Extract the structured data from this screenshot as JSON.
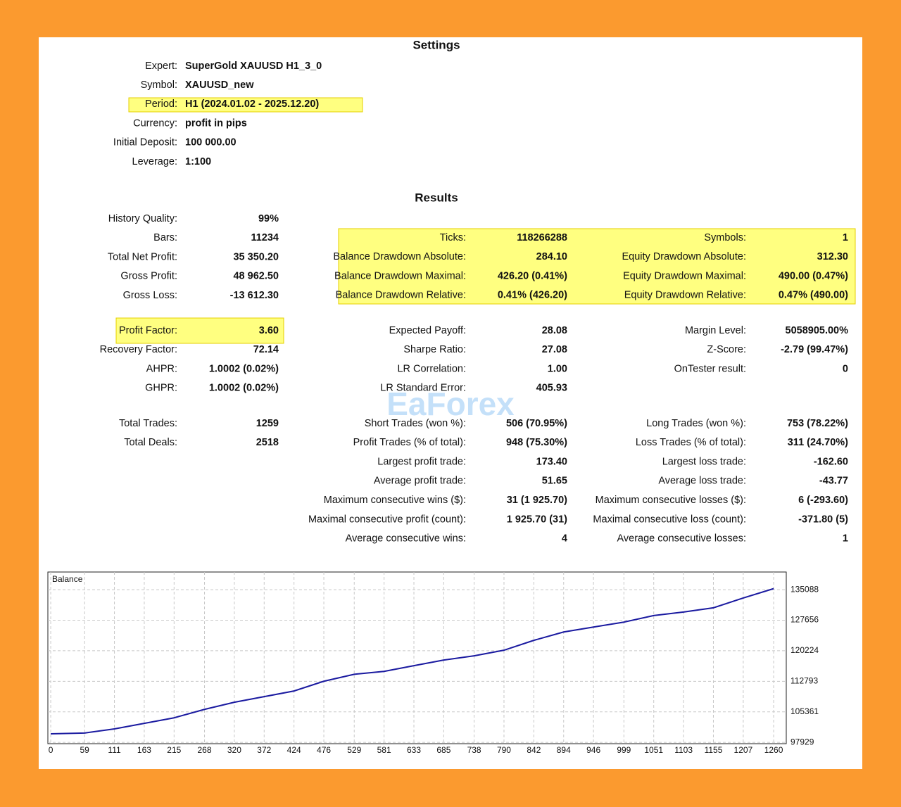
{
  "settings": {
    "title": "Settings",
    "rows": [
      {
        "label": "Expert:",
        "value": "SuperGold XAUUSD H1_3_0"
      },
      {
        "label": "Symbol:",
        "value": "XAUUSD_new"
      },
      {
        "label": "Period:",
        "value": "H1 (2024.01.02 - 2025.12.20)"
      },
      {
        "label": "Currency:",
        "value": "profit in pips"
      },
      {
        "label": "Initial Deposit:",
        "value": "100 000.00"
      },
      {
        "label": "Leverage:",
        "value": "1:100"
      }
    ]
  },
  "results": {
    "title": "Results",
    "blocks": [
      [
        {
          "label": "History Quality:",
          "value": "99%"
        },
        {
          "label": "Bars:",
          "value": "11234"
        },
        {
          "label": "Total Net Profit:",
          "value": "35 350.20"
        },
        {
          "label": "Gross Profit:",
          "value": "48 962.50"
        },
        {
          "label": "Gross Loss:",
          "value": "-13 612.30"
        }
      ],
      [
        {
          "label": "Profit Factor:",
          "value": "3.60"
        },
        {
          "label": "Recovery Factor:",
          "value": "72.14"
        },
        {
          "label": "AHPR:",
          "value": "1.0002 (0.02%)"
        },
        {
          "label": "GHPR:",
          "value": "1.0002 (0.02%)"
        }
      ],
      [
        {
          "label": "Total Trades:",
          "value": "1259"
        },
        {
          "label": "Total Deals:",
          "value": "2518"
        }
      ],
      [
        {
          "label": "Ticks:",
          "value": "118266288"
        },
        {
          "label": "Balance Drawdown Absolute:",
          "value": "284.10"
        },
        {
          "label": "Balance Drawdown Maximal:",
          "value": "426.20 (0.41%)"
        },
        {
          "label": "Balance Drawdown Relative:",
          "value": "0.41% (426.20)"
        }
      ],
      [
        {
          "label": "Expected Payoff:",
          "value": "28.08"
        },
        {
          "label": "Sharpe Ratio:",
          "value": "27.08"
        },
        {
          "label": "LR Correlation:",
          "value": "1.00"
        },
        {
          "label": "LR Standard Error:",
          "value": "405.93"
        }
      ],
      [
        {
          "label": "Short Trades (won %):",
          "value": "506 (70.95%)"
        },
        {
          "label": "Profit Trades (% of total):",
          "value": "948 (75.30%)"
        },
        {
          "label": "Largest profit trade:",
          "value": "173.40"
        },
        {
          "label": "Average profit trade:",
          "value": "51.65"
        },
        {
          "label": "Maximum consecutive wins ($):",
          "value": "31 (1 925.70)"
        },
        {
          "label": "Maximal consecutive profit (count):",
          "value": "1 925.70 (31)"
        },
        {
          "label": "Average consecutive wins:",
          "value": "4"
        }
      ],
      [
        {
          "label": "Symbols:",
          "value": "1"
        },
        {
          "label": "Equity Drawdown Absolute:",
          "value": "312.30"
        },
        {
          "label": "Equity Drawdown Maximal:",
          "value": "490.00 (0.47%)"
        },
        {
          "label": "Equity Drawdown Relative:",
          "value": "0.47% (490.00)"
        }
      ],
      [
        {
          "label": "Margin Level:",
          "value": "5058905.00%"
        },
        {
          "label": "Z-Score:",
          "value": "-2.79 (99.47%)"
        },
        {
          "label": "OnTester result:",
          "value": "0"
        }
      ],
      [
        {
          "label": "Long Trades (won %):",
          "value": "753 (78.22%)"
        },
        {
          "label": "Loss Trades (% of total):",
          "value": "311 (24.70%)"
        },
        {
          "label": "Largest loss trade:",
          "value": "-162.60"
        },
        {
          "label": "Average loss trade:",
          "value": "-43.77"
        },
        {
          "label": "Maximum consecutive losses ($):",
          "value": "6 (-293.60)"
        },
        {
          "label": "Maximal consecutive loss (count):",
          "value": "-371.80 (5)"
        },
        {
          "label": "Average consecutive losses:",
          "value": "1"
        }
      ]
    ]
  },
  "watermark": "EaForex",
  "balance_chart": {
    "type": "line",
    "title": "Balance",
    "x": [
      0,
      59,
      111,
      163,
      215,
      268,
      320,
      372,
      424,
      476,
      529,
      581,
      633,
      685,
      738,
      790,
      842,
      894,
      946,
      999,
      1051,
      1103,
      1155,
      1207,
      1260
    ],
    "values": [
      100000,
      100200,
      101200,
      102550,
      103900,
      105950,
      107680,
      109050,
      110430,
      112800,
      114500,
      115200,
      116600,
      117960,
      119000,
      120360,
      122760,
      124800,
      126000,
      127200,
      128800,
      129650,
      130680,
      133080,
      135350
    ],
    "color": "#1a1aa0",
    "xlim": [
      -5,
      1282
    ],
    "ylim": [
      97600,
      139400
    ],
    "xticks": [
      0,
      59,
      111,
      163,
      215,
      268,
      320,
      372,
      424,
      476,
      529,
      581,
      633,
      685,
      738,
      790,
      842,
      894,
      946,
      999,
      1051,
      1103,
      1155,
      1207,
      1260
    ],
    "yticks": [
      97929,
      105361,
      112793,
      120224,
      127656,
      135088
    ],
    "grid": true
  }
}
